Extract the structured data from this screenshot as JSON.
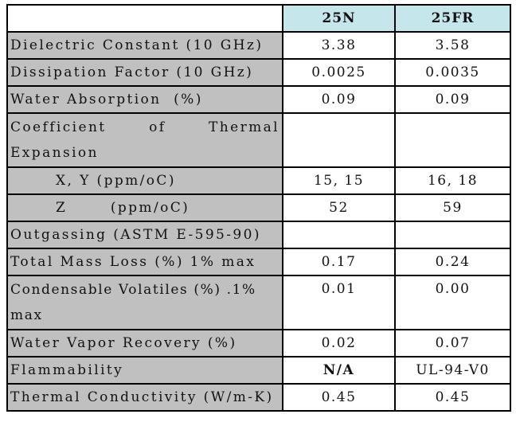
{
  "table": {
    "headers": [
      "",
      "25N",
      "25FR"
    ],
    "rows": [
      {
        "label": "Dielectric Constant (10 GHz)",
        "v1": "3.38",
        "v2": "3.58"
      },
      {
        "label": "Dissipation Factor (10 GHz)",
        "v1": "0.0025",
        "v2": "0.0035"
      },
      {
        "label": "Water Absorption  (%)",
        "v1": "0.09",
        "v2": "0.09"
      },
      {
        "label": "Coefficient   of   Thermal Expansion",
        "v1": "",
        "v2": ""
      },
      {
        "label": "X, Y (ppm/oC)",
        "v1": "15, 15",
        "v2": "16, 18"
      },
      {
        "label": "Z       (ppm/oC)",
        "v1": "52",
        "v2": "59"
      },
      {
        "label": "Outgassing (ASTM E-595-90)",
        "v1": "",
        "v2": ""
      },
      {
        "label": "Total Mass Loss (%) 1% max",
        "v1": "0.17",
        "v2": "0.24"
      },
      {
        "label": "Condensable Volatiles (%) .1% max",
        "v1": "0.01",
        "v2": "0.00"
      },
      {
        "label": "Water Vapor Recovery (%)",
        "v1": "0.02",
        "v2": "0.07"
      },
      {
        "label": "Flammability",
        "v1": "N/A",
        "v2": "UL-94-V0"
      },
      {
        "label": "Thermal Conductivity (W/m-K)",
        "v1": "0.45",
        "v2": "0.45"
      }
    ]
  }
}
